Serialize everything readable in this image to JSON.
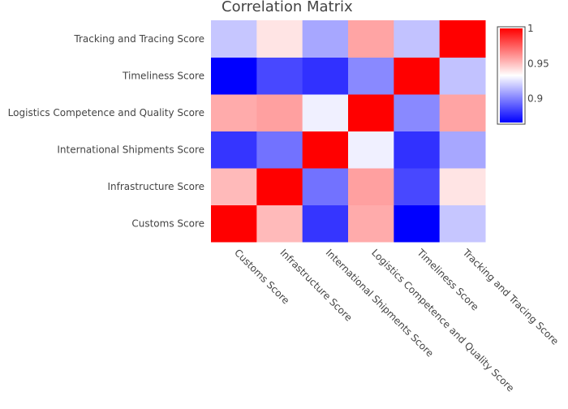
{
  "chart_data": {
    "type": "heatmap",
    "title": "Correlation Matrix",
    "x_labels": [
      "Customs Score",
      "Infrastructure Score",
      "International Shipments Score",
      "Logistics Competence and Quality Score",
      "Timeliness Score",
      "Tracking and Tracing Score"
    ],
    "y_labels": [
      "Customs Score",
      "Infrastructure Score",
      "International Shipments Score",
      "Logistics Competence and Quality Score",
      "Timeliness Score",
      "Tracking and Tracing Score"
    ],
    "z": [
      [
        1.0,
        0.951,
        0.88,
        0.955,
        0.866,
        0.918
      ],
      [
        0.951,
        1.0,
        0.896,
        0.958,
        0.885,
        0.94
      ],
      [
        0.88,
        0.896,
        1.0,
        0.929,
        0.879,
        0.91
      ],
      [
        0.955,
        0.958,
        0.929,
        1.0,
        0.902,
        0.957
      ],
      [
        0.866,
        0.885,
        0.879,
        0.902,
        1.0,
        0.917
      ],
      [
        0.918,
        0.94,
        0.91,
        0.957,
        0.917,
        1.0
      ]
    ],
    "zmin": 0.866,
    "zmax": 1.0,
    "colorscale": [
      [
        0,
        "#0000ff"
      ],
      [
        0.5,
        "#ffffff"
      ],
      [
        1,
        "#ff0000"
      ]
    ],
    "colorbar": {
      "ticks": [
        0.9,
        0.95,
        1.0
      ],
      "tick_labels": [
        "0.9",
        "0.95",
        "1"
      ]
    }
  }
}
